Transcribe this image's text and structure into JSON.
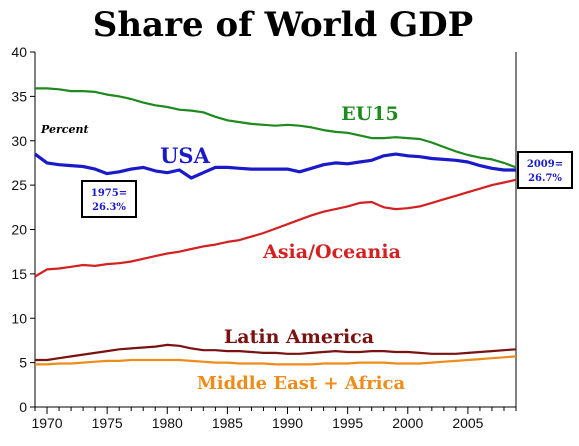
{
  "chart_data": {
    "type": "line",
    "title": "Share of World GDP",
    "unit_note": "Percent",
    "xlabel": "",
    "ylabel": "",
    "xlim": [
      1969,
      2009
    ],
    "ylim": [
      0,
      40
    ],
    "x_ticks": [
      1970,
      1975,
      1980,
      1985,
      1990,
      1995,
      2000,
      2005
    ],
    "y_ticks": [
      0,
      5,
      10,
      15,
      20,
      25,
      30,
      35,
      40
    ],
    "grid": false,
    "legend": "direct labels on lines",
    "series": [
      {
        "name": "EU15",
        "color": "#1e8a1e",
        "x": [
          1969,
          1970,
          1971,
          1972,
          1973,
          1974,
          1975,
          1976,
          1977,
          1978,
          1979,
          1980,
          1981,
          1982,
          1983,
          1984,
          1985,
          1986,
          1987,
          1988,
          1989,
          1990,
          1991,
          1992,
          1993,
          1994,
          1995,
          1996,
          1997,
          1998,
          1999,
          2000,
          2001,
          2002,
          2003,
          2004,
          2005,
          2006,
          2007,
          2008,
          2009
        ],
        "values": [
          35.9,
          35.9,
          35.8,
          35.6,
          35.6,
          35.5,
          35.2,
          35.0,
          34.7,
          34.3,
          34.0,
          33.8,
          33.5,
          33.4,
          33.2,
          32.7,
          32.3,
          32.1,
          31.9,
          31.8,
          31.7,
          31.8,
          31.7,
          31.5,
          31.2,
          31.0,
          30.9,
          30.6,
          30.3,
          30.3,
          30.4,
          30.3,
          30.2,
          29.8,
          29.3,
          28.8,
          28.4,
          28.1,
          27.9,
          27.5,
          27.0
        ]
      },
      {
        "name": "USA",
        "color": "#1a1ac8",
        "x": [
          1969,
          1970,
          1971,
          1972,
          1973,
          1974,
          1975,
          1976,
          1977,
          1978,
          1979,
          1980,
          1981,
          1982,
          1983,
          1984,
          1985,
          1986,
          1987,
          1988,
          1989,
          1990,
          1991,
          1992,
          1993,
          1994,
          1995,
          1996,
          1997,
          1998,
          1999,
          2000,
          2001,
          2002,
          2003,
          2004,
          2005,
          2006,
          2007,
          2008,
          2009
        ],
        "values": [
          28.5,
          27.5,
          27.3,
          27.2,
          27.1,
          26.8,
          26.3,
          26.5,
          26.8,
          27.0,
          26.6,
          26.4,
          26.7,
          25.8,
          26.4,
          27.0,
          27.0,
          26.9,
          26.8,
          26.8,
          26.8,
          26.8,
          26.5,
          26.9,
          27.3,
          27.5,
          27.4,
          27.6,
          27.8,
          28.3,
          28.5,
          28.3,
          28.2,
          28.0,
          27.9,
          27.8,
          27.6,
          27.2,
          26.9,
          26.7,
          26.7
        ]
      },
      {
        "name": "Asia/Oceania",
        "color": "#d42020",
        "x": [
          1969,
          1970,
          1971,
          1972,
          1973,
          1974,
          1975,
          1976,
          1977,
          1978,
          1979,
          1980,
          1981,
          1982,
          1983,
          1984,
          1985,
          1986,
          1987,
          1988,
          1989,
          1990,
          1991,
          1992,
          1993,
          1994,
          1995,
          1996,
          1997,
          1998,
          1999,
          2000,
          2001,
          2002,
          2003,
          2004,
          2005,
          2006,
          2007,
          2008,
          2009
        ],
        "values": [
          14.7,
          15.5,
          15.6,
          15.8,
          16.0,
          15.9,
          16.1,
          16.2,
          16.4,
          16.7,
          17.0,
          17.3,
          17.5,
          17.8,
          18.1,
          18.3,
          18.6,
          18.8,
          19.2,
          19.6,
          20.1,
          20.6,
          21.1,
          21.6,
          22.0,
          22.3,
          22.6,
          23.0,
          23.1,
          22.5,
          22.3,
          22.4,
          22.6,
          23.0,
          23.4,
          23.8,
          24.2,
          24.6,
          25.0,
          25.3,
          25.6
        ]
      },
      {
        "name": "Latin America",
        "color": "#7a1212",
        "x": [
          1969,
          1970,
          1971,
          1972,
          1973,
          1974,
          1975,
          1976,
          1977,
          1978,
          1979,
          1980,
          1981,
          1982,
          1983,
          1984,
          1985,
          1986,
          1987,
          1988,
          1989,
          1990,
          1991,
          1992,
          1993,
          1994,
          1995,
          1996,
          1997,
          1998,
          1999,
          2000,
          2001,
          2002,
          2003,
          2004,
          2005,
          2006,
          2007,
          2008,
          2009
        ],
        "values": [
          5.3,
          5.3,
          5.5,
          5.7,
          5.9,
          6.1,
          6.3,
          6.5,
          6.6,
          6.7,
          6.8,
          7.0,
          6.9,
          6.6,
          6.4,
          6.4,
          6.3,
          6.3,
          6.2,
          6.1,
          6.1,
          6.0,
          6.0,
          6.1,
          6.2,
          6.3,
          6.2,
          6.2,
          6.3,
          6.3,
          6.2,
          6.2,
          6.1,
          6.0,
          6.0,
          6.0,
          6.1,
          6.2,
          6.3,
          6.4,
          6.5
        ]
      },
      {
        "name": "Middle East + Africa",
        "color": "#ee8c1a",
        "x": [
          1969,
          1970,
          1971,
          1972,
          1973,
          1974,
          1975,
          1976,
          1977,
          1978,
          1979,
          1980,
          1981,
          1982,
          1983,
          1984,
          1985,
          1986,
          1987,
          1988,
          1989,
          1990,
          1991,
          1992,
          1993,
          1994,
          1995,
          1996,
          1997,
          1998,
          1999,
          2000,
          2001,
          2002,
          2003,
          2004,
          2005,
          2006,
          2007,
          2008,
          2009
        ],
        "values": [
          4.8,
          4.8,
          4.9,
          4.9,
          5.0,
          5.1,
          5.2,
          5.2,
          5.3,
          5.3,
          5.3,
          5.3,
          5.3,
          5.2,
          5.1,
          5.0,
          5.0,
          4.9,
          4.9,
          4.9,
          4.8,
          4.8,
          4.8,
          4.8,
          4.9,
          4.9,
          4.9,
          5.0,
          5.0,
          5.0,
          4.9,
          4.9,
          4.9,
          5.0,
          5.1,
          5.2,
          5.3,
          5.4,
          5.5,
          5.6,
          5.7
        ]
      }
    ],
    "annotations": [
      {
        "text": "1975=",
        "text2": "26.3%",
        "color": "#1a1ac8"
      },
      {
        "text": "2009=",
        "text2": "26.7%",
        "color": "#1a1ac8"
      }
    ]
  }
}
